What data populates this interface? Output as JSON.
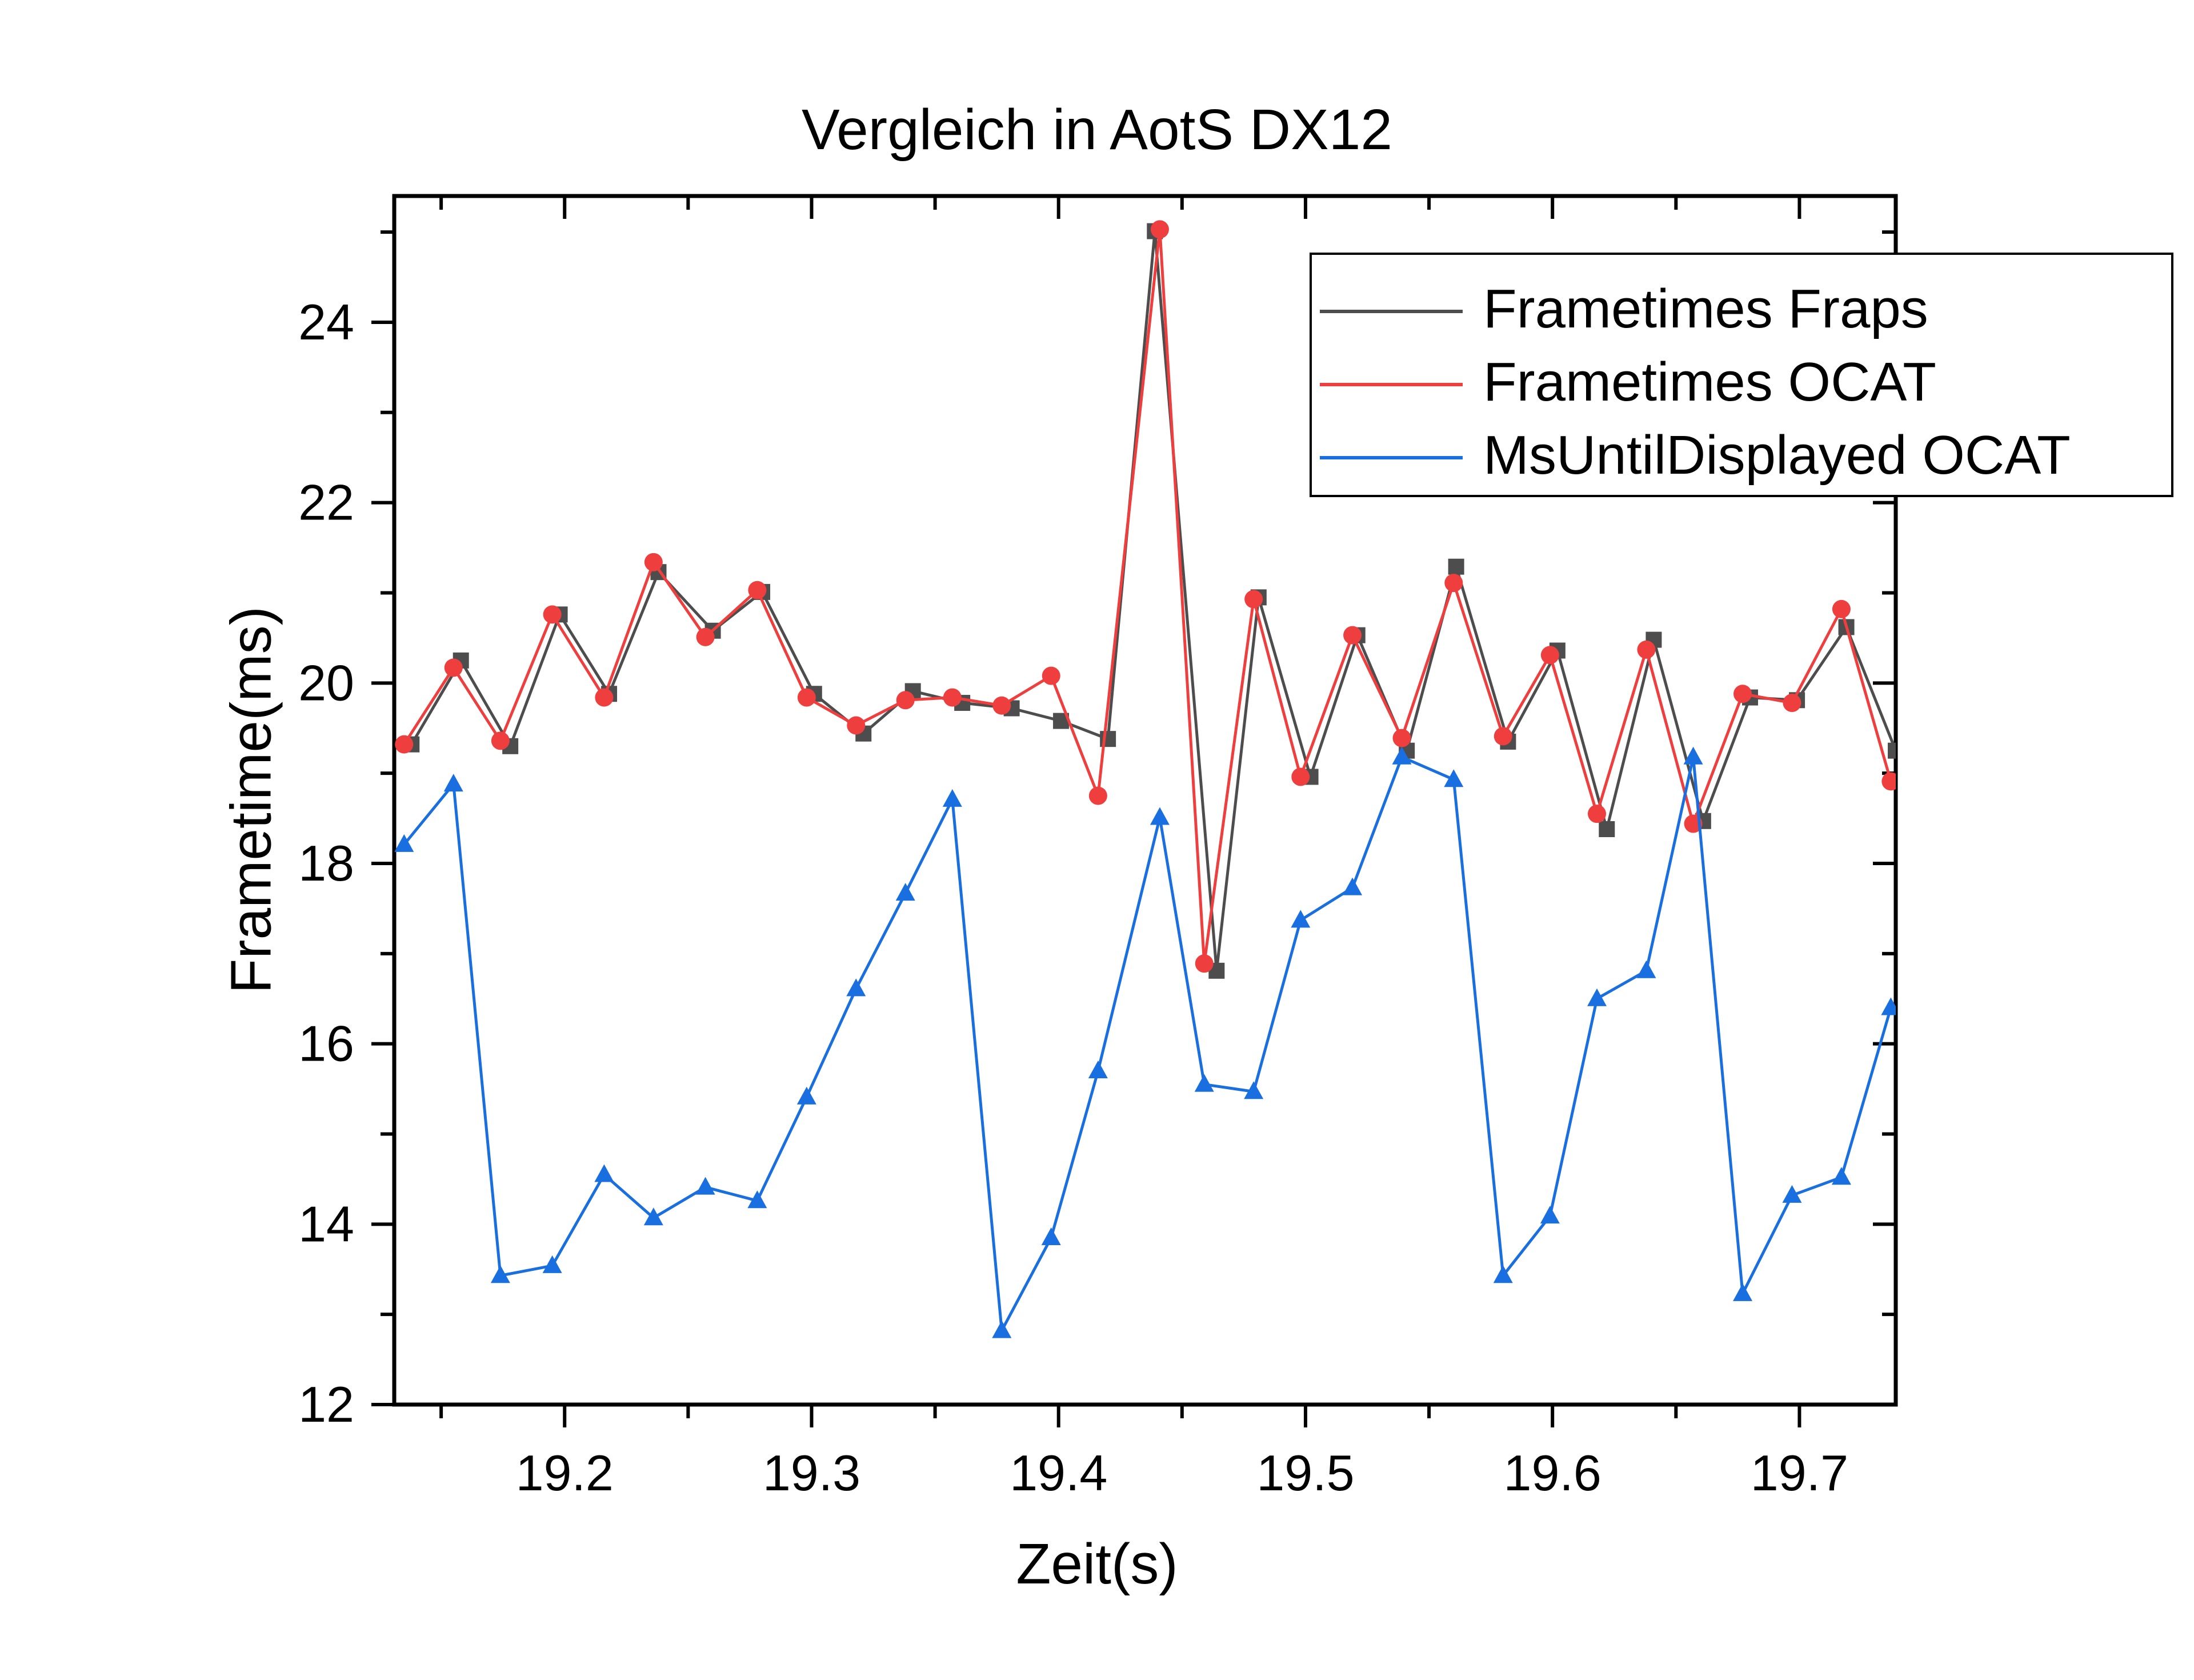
{
  "chart_data": {
    "type": "line",
    "title": "Vergleich in AotS DX12",
    "xlabel": "Zeit(s)",
    "ylabel": "Frametime(ms)",
    "xlim": [
      19.131,
      19.739
    ],
    "ylim": [
      12,
      25.4
    ],
    "xticks": [
      "19.2",
      "19.3",
      "19.4",
      "19.5",
      "19.6",
      "19.7"
    ],
    "yticks": [
      "12",
      "14",
      "16",
      "18",
      "20",
      "22",
      "24"
    ],
    "grid": false,
    "legend_position": "upper right",
    "series": [
      {
        "name": "Frametimes Fraps",
        "color": "#4d4d4d",
        "marker": "square",
        "x": [
          19.138,
          19.158,
          19.178,
          19.198,
          19.218,
          19.238,
          19.26,
          19.28,
          19.301,
          19.321,
          19.341,
          19.361,
          19.381,
          19.401,
          19.42,
          19.439,
          19.464,
          19.481,
          19.502,
          19.521,
          19.541,
          19.561,
          19.582,
          19.602,
          19.622,
          19.641,
          19.661,
          19.68,
          19.699,
          19.719,
          19.739
        ],
        "y": [
          19.32,
          20.25,
          19.3,
          20.76,
          19.88,
          21.23,
          20.58,
          21.01,
          19.88,
          19.44,
          19.91,
          19.78,
          19.72,
          19.58,
          19.38,
          25.01,
          16.81,
          20.95,
          18.96,
          20.53,
          19.25,
          21.29,
          19.35,
          20.36,
          18.38,
          20.48,
          18.47,
          19.84,
          19.81,
          20.62,
          19.25
        ]
      },
      {
        "name": "Frametimes OCAT",
        "color": "#ee3e3e",
        "marker": "circle",
        "x": [
          19.135,
          19.155,
          19.174,
          19.195,
          19.216,
          19.236,
          19.257,
          19.278,
          19.298,
          19.318,
          19.338,
          19.357,
          19.377,
          19.397,
          19.416,
          19.441,
          19.459,
          19.479,
          19.498,
          19.519,
          19.539,
          19.56,
          19.58,
          19.599,
          19.618,
          19.638,
          19.657,
          19.677,
          19.697,
          19.717,
          19.737
        ],
        "y": [
          19.32,
          20.17,
          19.36,
          20.76,
          19.84,
          21.34,
          20.51,
          21.03,
          19.84,
          19.53,
          19.81,
          19.84,
          19.75,
          20.08,
          18.75,
          25.03,
          16.89,
          20.93,
          18.96,
          20.53,
          19.39,
          21.11,
          19.41,
          20.31,
          18.55,
          20.37,
          18.44,
          19.88,
          19.78,
          20.82,
          18.91
        ]
      },
      {
        "name": "MsUntilDisplayed OCAT",
        "color": "#1a6fe0",
        "marker": "triangle",
        "x": [
          19.135,
          19.155,
          19.174,
          19.195,
          19.216,
          19.236,
          19.257,
          19.278,
          19.298,
          19.318,
          19.338,
          19.357,
          19.377,
          19.397,
          19.416,
          19.441,
          19.459,
          19.479,
          19.498,
          19.519,
          19.539,
          19.56,
          19.58,
          19.599,
          19.618,
          19.638,
          19.657,
          19.677,
          19.697,
          19.717,
          19.737
        ],
        "y": [
          18.21,
          18.88,
          13.43,
          13.54,
          14.55,
          14.07,
          14.41,
          14.26,
          15.41,
          16.61,
          17.67,
          18.71,
          12.82,
          13.85,
          15.7,
          18.51,
          15.55,
          15.47,
          17.37,
          17.73,
          19.18,
          18.93,
          13.43,
          14.09,
          16.5,
          16.81,
          19.18,
          13.23,
          14.32,
          14.52,
          16.4
        ]
      }
    ]
  }
}
